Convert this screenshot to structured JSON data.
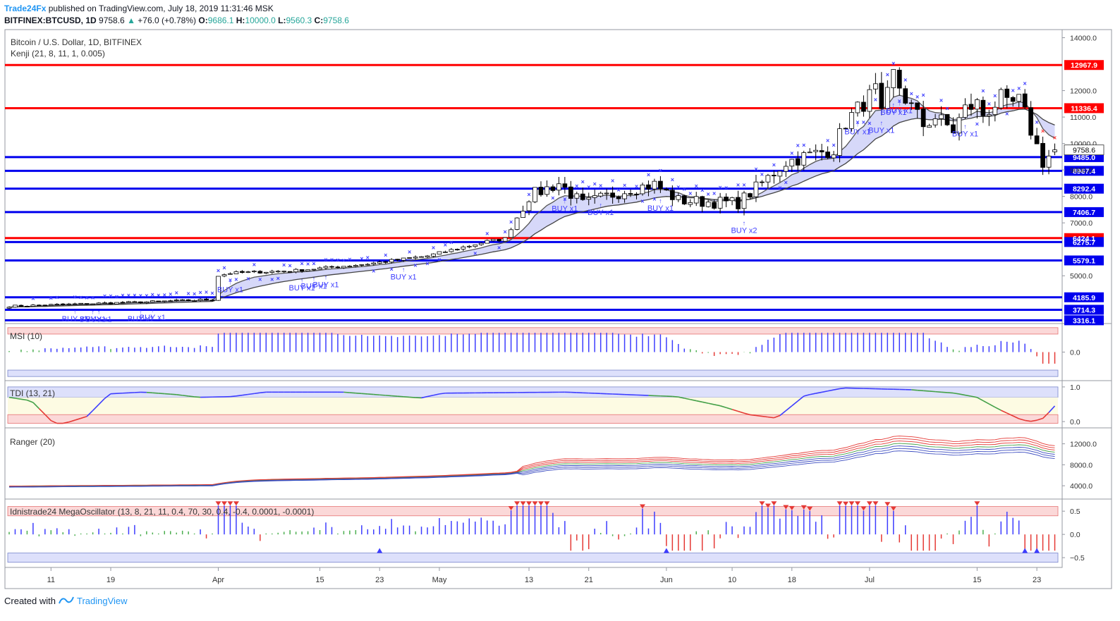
{
  "header": {
    "brand": "Trade24Fx",
    "published": "published on TradingView.com, July 18, 2019 11:31:46 MSK",
    "symbol": "BITFINEX:BTCUSD, 1D",
    "last": "9758.6",
    "change": "+76.0 (+0.78%)",
    "o_label": "O:",
    "o": "9686.1",
    "h_label": "H:",
    "h": "10000.0",
    "l_label": "L:",
    "l": "9560.3",
    "c_label": "C:",
    "c": "9758.6"
  },
  "footer": {
    "created_with": "Created with",
    "tradingview": "TradingView"
  },
  "colors": {
    "up": "#ffffff",
    "down": "#000000",
    "outline": "#000000",
    "resistance": "#ff0000",
    "support": "#0000ee",
    "marker": "#3d3dff",
    "ema_fill": "#c8cbf7",
    "ranger_blue": "#3b4cc0",
    "ranger_red": "#e53935"
  },
  "chart_data": [
    {
      "type": "candlestick",
      "title": "Bitcoin / U.S. Dollar, 1D, BITFINEX",
      "indicator": "Kenji (21, 8, 11, 1, 0.005)",
      "ylim": [
        3300,
        14200
      ],
      "yticks": [
        "14000.0",
        "12000.0",
        "11000.0",
        "10000.0",
        "9000.0",
        "8000.0",
        "7000.0",
        "5000.0"
      ],
      "ytick_values": [
        14000,
        12000,
        11000,
        10000,
        9000,
        8000,
        7000,
        5000
      ],
      "xlabels": [
        "11",
        "19",
        "Apr",
        "15",
        "23",
        "May",
        "13",
        "21",
        "Jun",
        "10",
        "18",
        "Jul",
        "15",
        "23"
      ],
      "xlabel_index": [
        7,
        17,
        35,
        52,
        62,
        72,
        87,
        97,
        110,
        121,
        131,
        144,
        162,
        172
      ],
      "last_price": "9758.6",
      "levels": [
        {
          "label": "12967.9",
          "value": 12967.9,
          "kind": "resistance"
        },
        {
          "label": "11336.4",
          "value": 11336.4,
          "kind": "resistance"
        },
        {
          "label": "9485.0",
          "value": 9485.0,
          "kind": "support"
        },
        {
          "label": "8967.4",
          "value": 8967.4,
          "kind": "support"
        },
        {
          "label": "8292.4",
          "value": 8292.4,
          "kind": "support"
        },
        {
          "label": "7406.7",
          "value": 7406.7,
          "kind": "support"
        },
        {
          "label": "6424.1",
          "value": 6424.1,
          "kind": "resistance"
        },
        {
          "label": "6275.7",
          "value": 6275.7,
          "kind": "support"
        },
        {
          "label": "5579.1",
          "value": 5579.1,
          "kind": "support"
        },
        {
          "label": "4185.9",
          "value": 4185.9,
          "kind": "support"
        },
        {
          "label": "3714.3",
          "value": 3714.3,
          "kind": "support"
        },
        {
          "label": "3316.1",
          "value": 3316.1,
          "kind": "support"
        }
      ],
      "buy_signals": [
        {
          "i": 11,
          "label": "BUY x1"
        },
        {
          "i": 14,
          "label": "BUY x1"
        },
        {
          "i": 15,
          "label": "BUY x1"
        },
        {
          "i": 22,
          "label": "BUY x1"
        },
        {
          "i": 24,
          "label": "BUY x1"
        },
        {
          "i": 37,
          "label": "BUY x1"
        },
        {
          "i": 49,
          "label": "BUY x1"
        },
        {
          "i": 51,
          "label": "BUY x1"
        },
        {
          "i": 53,
          "label": "BUY x1"
        },
        {
          "i": 66,
          "label": "BUY x1"
        },
        {
          "i": 93,
          "label": "BUY x1"
        },
        {
          "i": 99,
          "label": "BUY x1"
        },
        {
          "i": 109,
          "label": "BUY x1"
        },
        {
          "i": 123,
          "label": "BUY x2"
        },
        {
          "i": 142,
          "label": "BUY x1"
        },
        {
          "i": 146,
          "label": "BUY x1"
        },
        {
          "i": 149,
          "label": "BUY x1"
        },
        {
          "i": 148,
          "label": "BUY x1"
        },
        {
          "i": 160,
          "label": "BUY x1"
        }
      ]
    },
    {
      "type": "bar",
      "title": "MSI (10)",
      "ylim": [
        -1,
        1
      ],
      "yticks": [
        "0.0"
      ]
    },
    {
      "type": "line",
      "title": "TDI (13, 21)",
      "ylim": [
        -0.1,
        1.1
      ],
      "yticks": [
        "1.0",
        "0.0"
      ]
    },
    {
      "type": "line",
      "title": "Ranger (20)",
      "ylim": [
        2000,
        14500
      ],
      "yticks": [
        "12000.0",
        "8000.0",
        "4000.0"
      ]
    },
    {
      "type": "bar",
      "title": "Idnistrade24 MegaOscillator (13, 8, 21, 11, 0.4, 70, 30, 0.4, -0.4, 0.0001, -0.0001)",
      "ylim": [
        -0.65,
        0.7
      ],
      "yticks": [
        "0.5",
        "0.0",
        "−0.5"
      ]
    }
  ]
}
